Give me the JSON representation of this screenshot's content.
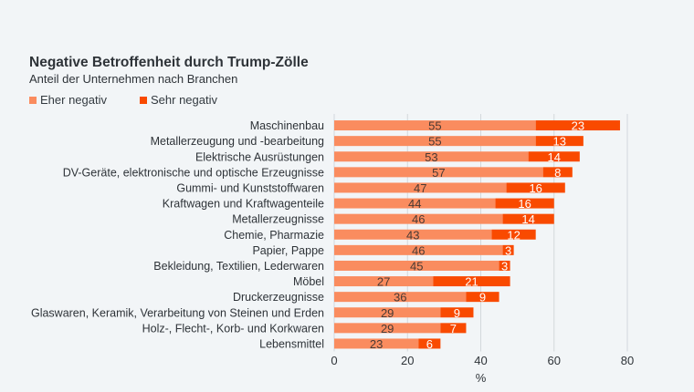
{
  "chart_data": {
    "type": "bar",
    "orientation": "horizontal",
    "stacked": true,
    "title": "Negative Betroffenheit durch Trump-Zölle",
    "subtitle": "Anteil der Unternehmen nach Branchen",
    "xlabel": "%",
    "ylabel": "",
    "xlim": [
      0,
      80
    ],
    "xticks": [
      0,
      20,
      40,
      60,
      80
    ],
    "grid": true,
    "legend_position": "top-left",
    "categories": [
      "Maschinenbau",
      "Metallerzeugung und -bearbeitung",
      "Elektrische Ausrüstungen",
      "DV-Geräte, elektronische und optische Erzeugnisse",
      "Gummi- und Kunststoffwaren",
      "Kraftwagen und Kraftwagenteile",
      "Metallerzeugnisse",
      "Chemie, Pharmazie",
      "Papier, Pappe",
      "Bekleidung, Textilien, Lederwaren",
      "Möbel",
      "Druckerzeugnisse",
      "Glaswaren, Keramik, Verarbeitung von Steinen und Erden",
      "Holz-, Flecht-, Korb- und Korkwaren",
      "Lebensmittel"
    ],
    "series": [
      {
        "name": "Eher negativ",
        "color": "#fa8c5f",
        "label_color": "#4a3a34",
        "values": [
          55,
          55,
          53,
          57,
          47,
          44,
          46,
          43,
          46,
          45,
          27,
          36,
          29,
          29,
          23
        ]
      },
      {
        "name": "Sehr negativ",
        "color": "#f94a00",
        "label_color": "#ffffff",
        "values": [
          23,
          13,
          14,
          8,
          16,
          16,
          14,
          12,
          3,
          3,
          21,
          9,
          9,
          7,
          6
        ]
      }
    ]
  }
}
